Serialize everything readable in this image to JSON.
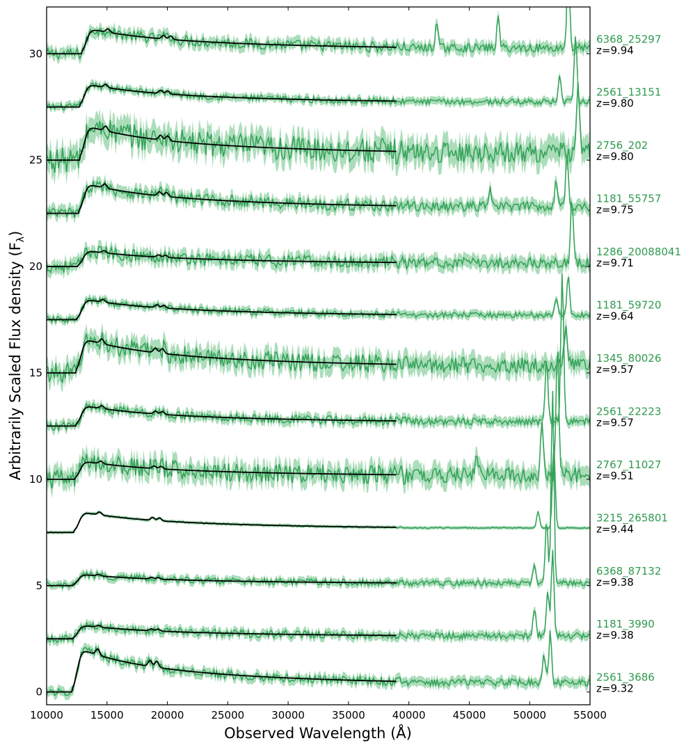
{
  "chart_data": {
    "type": "line",
    "xlabel": "Observed Wavelength (Å)",
    "ylabel": "Arbitrarily Scaled Flux density (F",
    "ylabel_sub": "λ",
    "ylabel_close": ")",
    "xlim": [
      10000,
      55000
    ],
    "ylim": [
      -0.6,
      32.2
    ],
    "x_ticks": [
      10000,
      15000,
      20000,
      25000,
      30000,
      35000,
      40000,
      45000,
      50000,
      55000
    ],
    "y_ticks": [
      0,
      5,
      10,
      15,
      20,
      25,
      30
    ],
    "grid": false,
    "model_end_wavelength": 39000,
    "colors": {
      "data_line": "#35a35a",
      "error_band": "#8fd1a3",
      "model_line": "#000000",
      "label_green": "#2e9a4e",
      "axis": "#000000"
    },
    "series": [
      {
        "name": "6368_25297",
        "redshift_label": "z=9.94",
        "z": 9.94,
        "baseline": 30.0,
        "amplitude": 1.1,
        "noise": 0.25,
        "line_peaks": [
          {
            "x": 53200,
            "h": 4.0
          },
          {
            "x": 47400,
            "h": 1.4
          },
          {
            "x": 42300,
            "h": 1.2
          }
        ]
      },
      {
        "name": "2561_13151",
        "redshift_label": "z=9.80",
        "z": 9.8,
        "baseline": 27.5,
        "amplitude": 1.0,
        "noise": 0.15,
        "line_peaks": [
          {
            "x": 53800,
            "h": 3.0
          },
          {
            "x": 52500,
            "h": 1.2
          }
        ]
      },
      {
        "name": "2756_202",
        "redshift_label": "z=9.80",
        "z": 9.8,
        "baseline": 25.0,
        "amplitude": 1.5,
        "noise": 0.6,
        "line_peaks": [
          {
            "x": 54000,
            "h": 3.5
          }
        ]
      },
      {
        "name": "1181_55757",
        "redshift_label": "z=9.75",
        "z": 9.75,
        "baseline": 22.5,
        "amplitude": 1.3,
        "noise": 0.28,
        "line_peaks": [
          {
            "x": 53100,
            "h": 2.5
          },
          {
            "x": 52200,
            "h": 1.3
          },
          {
            "x": 46700,
            "h": 0.8
          }
        ]
      },
      {
        "name": "1286_20088041",
        "redshift_label": "z=9.71",
        "z": 9.71,
        "baseline": 20.0,
        "amplitude": 0.7,
        "noise": 0.3,
        "line_peaks": [
          {
            "x": 53500,
            "h": 3.0
          }
        ]
      },
      {
        "name": "1181_59720",
        "redshift_label": "z=9.64",
        "z": 9.64,
        "baseline": 17.5,
        "amplitude": 0.9,
        "noise": 0.15,
        "line_peaks": [
          {
            "x": 53200,
            "h": 1.8
          },
          {
            "x": 52200,
            "h": 0.9
          }
        ]
      },
      {
        "name": "1345_80026",
        "redshift_label": "z=9.57",
        "z": 9.57,
        "baseline": 15.0,
        "amplitude": 1.5,
        "noise": 0.45,
        "line_peaks": [
          {
            "x": 53000,
            "h": 2.2
          }
        ]
      },
      {
        "name": "2561_22223",
        "redshift_label": "z=9.57",
        "z": 9.57,
        "baseline": 12.5,
        "amplitude": 0.9,
        "noise": 0.2,
        "line_peaks": [
          {
            "x": 52700,
            "h": 7.0
          },
          {
            "x": 51400,
            "h": 3.0
          }
        ]
      },
      {
        "name": "2767_11027",
        "redshift_label": "z=9.51",
        "z": 9.51,
        "baseline": 10.0,
        "amplitude": 0.8,
        "noise": 0.45,
        "line_peaks": [
          {
            "x": 52300,
            "h": 6.0
          },
          {
            "x": 51000,
            "h": 2.5
          },
          {
            "x": 45600,
            "h": 1.3
          }
        ]
      },
      {
        "name": "3215_265801",
        "redshift_label": "z=9.44",
        "z": 9.44,
        "baseline": 7.5,
        "amplitude": 0.9,
        "noise": 0.03,
        "line_peaks": [
          {
            "x": 52000,
            "h": 4.0
          },
          {
            "x": 50700,
            "h": 0.8
          }
        ]
      },
      {
        "name": "6368_87132",
        "redshift_label": "z=9.38",
        "z": 9.38,
        "baseline": 5.0,
        "amplitude": 0.5,
        "noise": 0.15,
        "line_peaks": [
          {
            "x": 51900,
            "h": 9.0
          },
          {
            "x": 51400,
            "h": 3.0
          },
          {
            "x": 50400,
            "h": 1.0
          }
        ]
      },
      {
        "name": "1181_3990",
        "redshift_label": "z=9.38",
        "z": 9.38,
        "baseline": 2.5,
        "amplitude": 0.6,
        "noise": 0.18,
        "line_peaks": [
          {
            "x": 51900,
            "h": 4.0
          },
          {
            "x": 51500,
            "h": 2.0
          },
          {
            "x": 50400,
            "h": 1.3
          }
        ]
      },
      {
        "name": "2561_3686",
        "redshift_label": "z=9.32",
        "z": 9.32,
        "baseline": 0.0,
        "amplitude": 1.9,
        "noise": 0.2,
        "line_peaks": [
          {
            "x": 51700,
            "h": 2.3
          },
          {
            "x": 51200,
            "h": 1.3
          }
        ]
      }
    ]
  }
}
